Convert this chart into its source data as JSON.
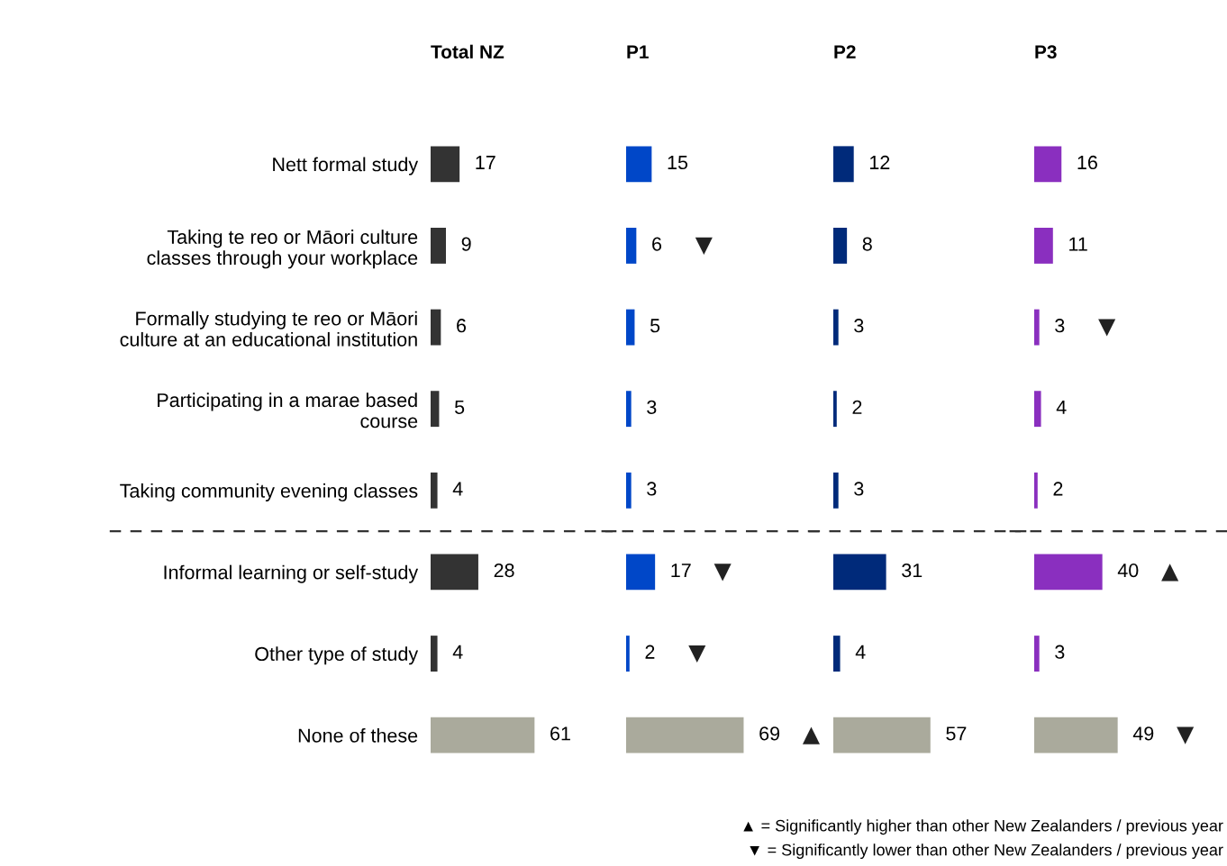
{
  "chart_data": [
    {
      "type": "bar",
      "orientation": "horizontal",
      "title": "Total NZ",
      "categories": [
        "Nett formal study",
        "Taking te reo or Māori culture\nclasses through your workplace",
        "Formally studying te reo or Māori\nculture at an educational institution",
        "Participating in a marae based\ncourse",
        "Taking community evening classes",
        "Informal learning or self-study",
        "Other type of study",
        "None of these"
      ],
      "tick_labels": "y",
      "data_labels": true,
      "series": [
        {
          "values": [
            17,
            9,
            6,
            5,
            4,
            28,
            4,
            61
          ],
          "colors": [
            "#333333",
            "#333333",
            "#333333",
            "#333333",
            "#333333",
            "#333333",
            "#333333",
            "#aaaa9c"
          ]
        }
      ]
    },
    {
      "type": "bar",
      "orientation": "horizontal",
      "title": "P1",
      "categories": [
        "Nett formal study",
        "Taking te reo or Māori culture\nclasses through your workplace",
        "Formally studying te reo or Māori\nculture at an educational institution",
        "Participating in a marae based\ncourse",
        "Taking community evening classes",
        "Informal learning or self-study",
        "Other type of study",
        "None of these"
      ],
      "tick_labels": false,
      "data_labels": true,
      "series": [
        {
          "values": [
            15,
            6,
            5,
            3,
            3,
            17,
            2,
            69
          ],
          "colors": [
            "#0047c8",
            "#0047c8",
            "#0047c8",
            "#0047c8",
            "#0047c8",
            "#0047c8",
            "#0047c8",
            "#aaaa9c"
          ]
        }
      ],
      "annotations": [
        {
          "text": "▼",
          "x": 6,
          "y": "Taking te reo or Māori culture\nclasses through your workplace"
        },
        {
          "text": "▼",
          "x": 17,
          "y": "Informal learning or self-study"
        },
        {
          "text": "▼",
          "x": 2,
          "y": "Other type of study"
        },
        {
          "text": "▲",
          "x": 69,
          "y": "None of these"
        }
      ]
    },
    {
      "type": "bar",
      "orientation": "horizontal",
      "title": "P2",
      "categories": [
        "Nett formal study",
        "Taking te reo or Māori culture\nclasses through your workplace",
        "Formally studying te reo or Māori\nculture at an educational institution",
        "Participating in a marae based\ncourse",
        "Taking community evening classes",
        "Informal learning or self-study",
        "Other type of study",
        "None of these"
      ],
      "tick_labels": false,
      "data_labels": true,
      "series": [
        {
          "values": [
            12,
            8,
            3,
            2,
            3,
            31,
            4,
            57
          ],
          "colors": [
            "#002a7a",
            "#002a7a",
            "#002a7a",
            "#002a7a",
            "#002a7a",
            "#002a7a",
            "#002a7a",
            "#aaaa9c"
          ]
        }
      ]
    },
    {
      "type": "bar",
      "orientation": "horizontal",
      "title": "P3",
      "categories": [
        "Nett formal study",
        "Taking te reo or Māori culture\nclasses through your workplace",
        "Formally studying te reo or Māori\nculture at an educational institution",
        "Participating in a marae based\ncourse",
        "Taking community evening classes",
        "Informal learning or self-study",
        "Other type of study",
        "None of these"
      ],
      "tick_labels": false,
      "data_labels": true,
      "series": [
        {
          "values": [
            16,
            11,
            3,
            4,
            2,
            40,
            3,
            49
          ],
          "colors": [
            "#8a2fbf",
            "#8a2fbf",
            "#8a2fbf",
            "#8a2fbf",
            "#8a2fbf",
            "#8a2fbf",
            "#8a2fbf",
            "#aaaa9c"
          ]
        }
      ],
      "annotations": [
        {
          "text": "▼",
          "x": 3,
          "y": "Formally studying te reo or Māori\nculture at an educational institution"
        },
        {
          "text": "▲",
          "x": 40,
          "y": "Informal learning or self-study"
        },
        {
          "text": "▼",
          "x": 49,
          "y": "None of these"
        },
        "▲ = Significantly higher than other New Zealanders / previous year",
        "▼ = Significantly lower than other New Zealanders / previous year"
      ]
    }
  ]
}
